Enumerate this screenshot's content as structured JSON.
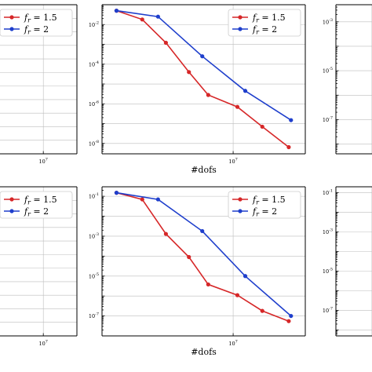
{
  "chart_data": [
    {
      "type": "line",
      "panel": "top-left",
      "xlog": true,
      "ylog": true,
      "xlim": [
        2000000,
        25000000
      ],
      "ylim": [
        1e-10,
        10
      ],
      "x_ticks": [
        {
          "value": 10000000,
          "label": "10^7"
        }
      ],
      "y_ticks": [],
      "legend": {
        "position": "top-right"
      },
      "series": [
        {
          "name": "f_r = 1.5",
          "color": "#d62728",
          "x": [],
          "y": []
        },
        {
          "name": "f_r = 2",
          "color": "#1f3fcc",
          "x": [],
          "y": []
        }
      ]
    },
    {
      "type": "line",
      "panel": "top-middle",
      "xlog": true,
      "ylog": true,
      "xlim": [
        2200000,
        23000000
      ],
      "ylim": [
        3e-09,
        0.1
      ],
      "xlabel": "#dofs",
      "x_ticks": [
        {
          "value": 10000000,
          "label": "10^7"
        }
      ],
      "y_ticks": [
        {
          "value": 0.01,
          "label": "10^-2"
        },
        {
          "value": 0.0001,
          "label": "10^-4"
        },
        {
          "value": 1e-06,
          "label": "10^-6"
        },
        {
          "value": 1e-08,
          "label": "10^-8"
        }
      ],
      "legend": {
        "position": "top-right"
      },
      "series": [
        {
          "name": "f_r = 1.5",
          "color": "#d62728",
          "x": [
            2600000,
            3500000,
            4600000,
            6000000,
            7500000,
            10500000,
            14000000,
            19000000
          ],
          "y": [
            0.05,
            0.018,
            0.0012,
            4e-05,
            2.8e-06,
            7e-07,
            7e-08,
            6.5e-09
          ]
        },
        {
          "name": "f_r = 2",
          "color": "#1f3fcc",
          "x": [
            2600000,
            4200000,
            7000000,
            11500000,
            19500000
          ],
          "y": [
            0.05,
            0.025,
            0.00025,
            4.5e-06,
            1.5e-07
          ]
        }
      ]
    },
    {
      "type": "line",
      "panel": "top-right",
      "xlog": true,
      "ylog": true,
      "xlim": [
        2000000,
        25000000
      ],
      "ylim": [
        4e-09,
        0.005
      ],
      "y_ticks": [
        {
          "value": 0.001,
          "label": "10^-3"
        },
        {
          "value": 1e-05,
          "label": "10^-5"
        },
        {
          "value": 1e-07,
          "label": "10^-7"
        }
      ],
      "series": [
        {
          "name": "f_r = 1.5",
          "color": "#d62728",
          "x": [],
          "y": []
        },
        {
          "name": "f_r = 2",
          "color": "#1f3fcc",
          "x": [],
          "y": []
        }
      ]
    },
    {
      "type": "line",
      "panel": "bottom-left",
      "xlog": true,
      "ylog": true,
      "xlim": [
        2000000,
        25000000
      ],
      "ylim": [
        1e-10,
        10
      ],
      "x_ticks": [
        {
          "value": 10000000,
          "label": "10^7"
        }
      ],
      "y_ticks": [],
      "legend": {
        "position": "top-right"
      },
      "series": [
        {
          "name": "f_r = 1.5",
          "color": "#d62728",
          "x": [],
          "y": []
        },
        {
          "name": "f_r = 2",
          "color": "#1f3fcc",
          "x": [],
          "y": []
        }
      ]
    },
    {
      "type": "line",
      "panel": "bottom-middle",
      "xlog": true,
      "ylog": true,
      "xlim": [
        2200000,
        23000000
      ],
      "ylim": [
        1e-08,
        0.3
      ],
      "xlabel": "#dofs",
      "x_ticks": [
        {
          "value": 10000000,
          "label": "10^7"
        }
      ],
      "y_ticks": [
        {
          "value": 0.1,
          "label": "10^-1"
        },
        {
          "value": 0.001,
          "label": "10^-3"
        },
        {
          "value": 1e-05,
          "label": "10^-5"
        },
        {
          "value": 1e-07,
          "label": "10^-7"
        }
      ],
      "legend": {
        "position": "top-right"
      },
      "series": [
        {
          "name": "f_r = 1.5",
          "color": "#d62728",
          "x": [
            2600000,
            3500000,
            4600000,
            6000000,
            7500000,
            10500000,
            14000000,
            19000000
          ],
          "y": [
            0.15,
            0.07,
            0.0013,
            9e-05,
            3.8e-06,
            1.1e-06,
            1.8e-07,
            5.5e-08
          ]
        },
        {
          "name": "f_r = 2",
          "color": "#1f3fcc",
          "x": [
            2600000,
            4200000,
            7000000,
            11500000,
            19500000
          ],
          "y": [
            0.15,
            0.07,
            0.0018,
            1e-05,
            1e-07
          ]
        }
      ]
    },
    {
      "type": "line",
      "panel": "bottom-right",
      "xlog": true,
      "ylog": true,
      "xlim": [
        2000000,
        25000000
      ],
      "ylim": [
        5e-09,
        0.2
      ],
      "y_ticks": [
        {
          "value": 0.1,
          "label": "10^-1"
        },
        {
          "value": 0.001,
          "label": "10^-3"
        },
        {
          "value": 1e-05,
          "label": "10^-5"
        },
        {
          "value": 1e-07,
          "label": "10^-7"
        }
      ],
      "series": [
        {
          "name": "f_r = 1.5",
          "color": "#d62728",
          "x": [],
          "y": []
        },
        {
          "name": "f_r = 2",
          "color": "#1f3fcc",
          "x": [],
          "y": []
        }
      ]
    }
  ]
}
